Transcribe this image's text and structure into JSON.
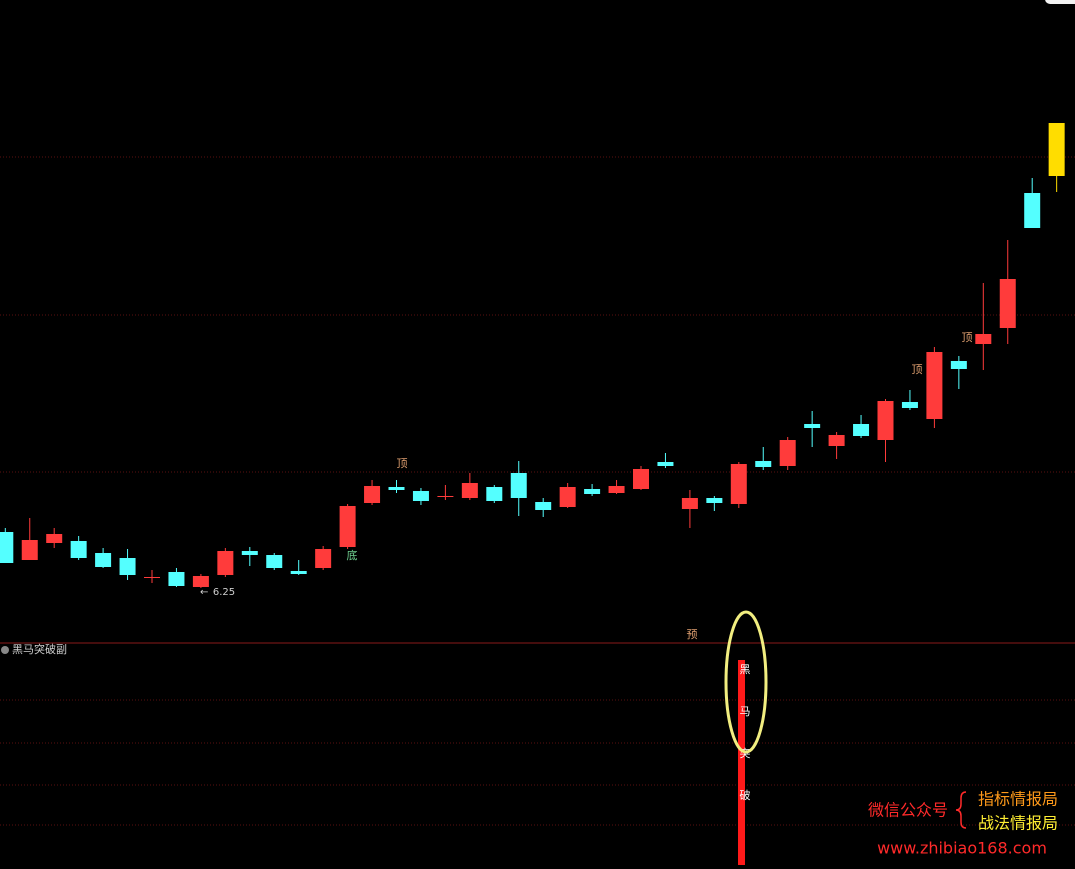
{
  "chart_data": {
    "type": "candlestick",
    "ylim": [
      5.7,
      12.13
    ],
    "colors": {
      "up": "#ff3b3b",
      "down": "#54ffff",
      "last": "#ffdd00"
    },
    "open": [
      6.81,
      6.53,
      6.7,
      6.72,
      6.6,
      6.55,
      6.35,
      6.41,
      6.26,
      6.38,
      6.62,
      6.58,
      6.42,
      6.45,
      6.66,
      7.1,
      7.26,
      7.22,
      7.16,
      7.15,
      7.26,
      7.4,
      7.11,
      7.06,
      7.24,
      7.2,
      7.24,
      7.51,
      7.04,
      7.15,
      7.09,
      7.52,
      7.47,
      7.89,
      7.67,
      7.89,
      7.73,
      8.11,
      7.94,
      8.52,
      8.69,
      8.85,
      10.2,
      10.37
    ],
    "high": [
      6.85,
      6.95,
      6.85,
      6.77,
      6.65,
      6.64,
      6.43,
      6.45,
      6.39,
      6.65,
      6.66,
      6.6,
      6.53,
      6.67,
      7.09,
      7.33,
      7.33,
      7.25,
      7.28,
      7.4,
      7.28,
      7.52,
      7.15,
      7.3,
      7.29,
      7.33,
      7.47,
      7.6,
      7.23,
      7.17,
      7.51,
      7.66,
      7.76,
      8.02,
      7.81,
      7.98,
      8.14,
      8.23,
      8.66,
      8.57,
      9.3,
      9.73,
      10.35,
      10.9
    ],
    "low": [
      6.5,
      6.53,
      6.65,
      6.53,
      6.45,
      6.33,
      6.3,
      6.26,
      6.25,
      6.36,
      6.47,
      6.43,
      6.38,
      6.43,
      6.64,
      7.08,
      7.2,
      7.08,
      7.13,
      7.13,
      7.1,
      6.97,
      6.96,
      7.05,
      7.17,
      7.19,
      7.23,
      7.45,
      6.85,
      7.02,
      7.05,
      7.43,
      7.43,
      7.66,
      7.54,
      7.75,
      7.51,
      8.03,
      7.85,
      8.24,
      8.43,
      8.69,
      9.85,
      10.21
    ],
    "close": [
      6.5,
      6.73,
      6.79,
      6.55,
      6.46,
      6.38,
      6.36,
      6.27,
      6.37,
      6.62,
      6.58,
      6.45,
      6.39,
      6.64,
      7.07,
      7.27,
      7.23,
      7.12,
      7.17,
      7.3,
      7.12,
      7.15,
      7.03,
      7.26,
      7.19,
      7.27,
      7.44,
      7.47,
      7.15,
      7.1,
      7.49,
      7.46,
      7.73,
      7.85,
      7.78,
      7.77,
      8.12,
      8.05,
      8.61,
      8.44,
      8.79,
      9.34,
      9.85,
      10.9
    ],
    "low_label": 6.25,
    "annotations": [
      "底",
      "顶",
      "顶",
      "顶"
    ],
    "indicator": {
      "title": "黑马突破副",
      "warning": "预",
      "signal": [
        "黑",
        "马",
        "突",
        "破"
      ]
    },
    "watermark": {
      "left": "微信公众号",
      "line1": "指标情报局",
      "line2": "战法情报局",
      "url": "www.zhibiao168.com"
    }
  }
}
